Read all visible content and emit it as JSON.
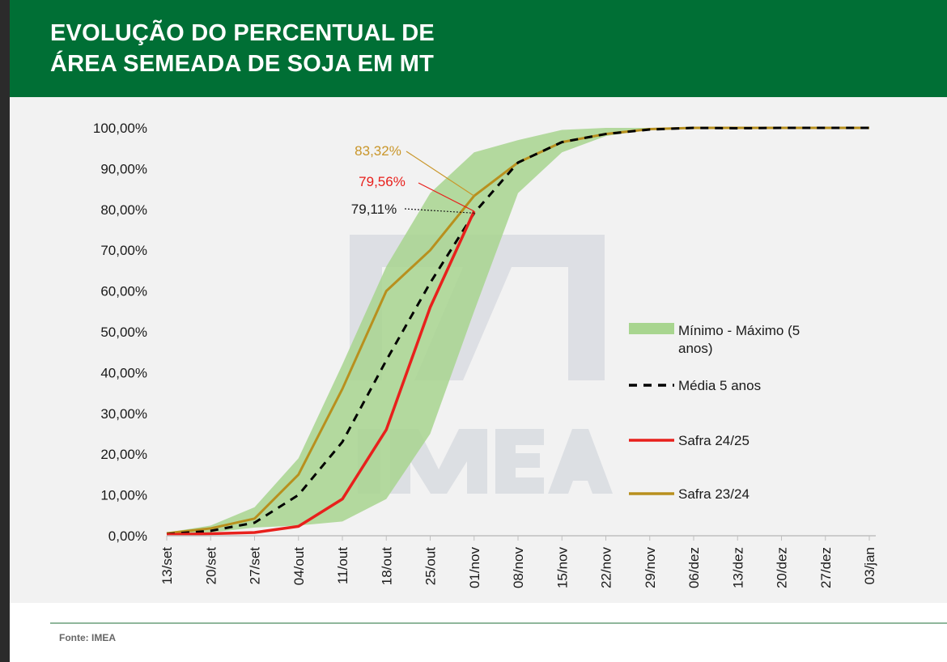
{
  "header": {
    "title_line1": "EVOLUÇÃO DO PERCENTUAL DE",
    "title_line2": "ÁREA SEMEADA DE SOJA EM MT"
  },
  "footer": {
    "source": "Fonte: IMEA"
  },
  "colors": {
    "header_bg": "#006f35",
    "band": "#a8d58f",
    "media": "#000000",
    "safra_2425": "#e8201c",
    "safra_2324": "#b8901e",
    "label_2324": "#c9962a",
    "label_2425": "#e8201c"
  },
  "chart_data": {
    "type": "line",
    "categories": [
      "13/set",
      "20/set",
      "27/set",
      "04/out",
      "11/out",
      "18/out",
      "25/out",
      "01/nov",
      "08/nov",
      "15/nov",
      "22/nov",
      "29/nov",
      "06/dez",
      "13/dez",
      "20/dez",
      "27/dez",
      "03/jan"
    ],
    "y_ticks": [
      "0,00%",
      "10,00%",
      "20,00%",
      "30,00%",
      "40,00%",
      "50,00%",
      "60,00%",
      "70,00%",
      "80,00%",
      "90,00%",
      "100,00%"
    ],
    "ylim": [
      0,
      100
    ],
    "legend_position": "right",
    "band": {
      "name": "Mínimo - Máximo (5 anos)",
      "min": [
        0.2,
        0.8,
        2.0,
        2.5,
        3.5,
        9,
        25,
        55,
        84,
        94,
        98,
        99.6,
        100,
        100,
        100,
        100,
        100
      ],
      "max": [
        0.8,
        2.5,
        7,
        19,
        42,
        66,
        84,
        94,
        97,
        99.5,
        100,
        100,
        100,
        100,
        100,
        100,
        100
      ]
    },
    "series": [
      {
        "name": "Média 5 anos",
        "style": "dashed",
        "values": [
          0.4,
          1.2,
          3.2,
          10,
          23,
          43,
          62,
          79.11,
          91.5,
          96.5,
          98.5,
          99.6,
          100,
          99.9,
          100,
          100,
          100
        ]
      },
      {
        "name": "Safra 24/25",
        "style": "solid",
        "values": [
          0.3,
          0.5,
          0.8,
          2.3,
          9,
          26,
          56,
          79.56,
          null,
          null,
          null,
          null,
          null,
          null,
          null,
          null,
          null
        ]
      },
      {
        "name": "Safra 23/24",
        "style": "solid",
        "values": [
          0.6,
          1.8,
          4.2,
          15,
          36,
          60,
          70,
          83.32,
          91.5,
          96.5,
          98.5,
          99.7,
          100,
          100,
          100,
          100,
          100
        ]
      }
    ],
    "annotations": [
      {
        "text": "83,32%",
        "series": "Safra 23/24",
        "category": "01/nov"
      },
      {
        "text": "79,56%",
        "series": "Safra 24/25",
        "category": "01/nov"
      },
      {
        "text": "79,11%",
        "series": "Média 5 anos",
        "category": "01/nov"
      }
    ]
  }
}
